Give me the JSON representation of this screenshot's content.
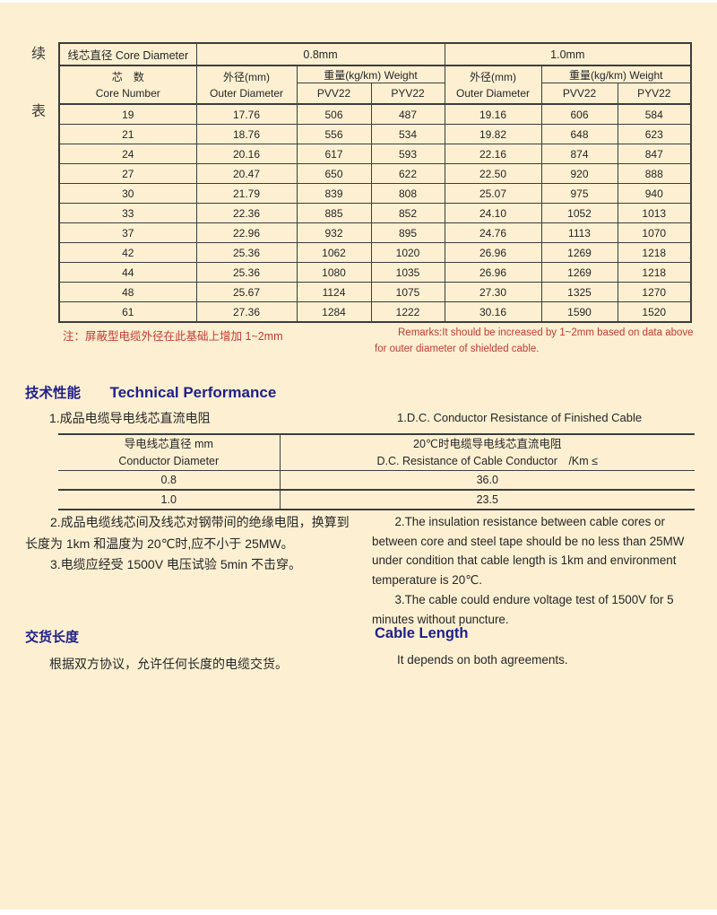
{
  "colors": {
    "background": "#fdf0d2",
    "accent_blue": "#1f1f8b",
    "note_red": "#c43b36",
    "table_border": "#3d3d3d"
  },
  "continued_label": {
    "char1": "续",
    "char2": "表"
  },
  "table1": {
    "header": {
      "core_diameter": "线芯直径 Core Diameter",
      "size_08": "0.8mm",
      "size_10": "1.0mm",
      "core_number_cn": "芯　数",
      "core_number_en": "Core Number",
      "outer_diameter_cn": "外径(mm)",
      "outer_diameter_en": "Outer Diameter",
      "weight": "重量(kg/km) Weight",
      "pvv22": "PVV22",
      "pyv22": "PYV22"
    },
    "rows": [
      [
        "19",
        "17.76",
        "506",
        "487",
        "19.16",
        "606",
        "584"
      ],
      [
        "21",
        "18.76",
        "556",
        "534",
        "19.82",
        "648",
        "623"
      ],
      [
        "24",
        "20.16",
        "617",
        "593",
        "22.16",
        "874",
        "847"
      ],
      [
        "27",
        "20.47",
        "650",
        "622",
        "22.50",
        "920",
        "888"
      ],
      [
        "30",
        "21.79",
        "839",
        "808",
        "25.07",
        "975",
        "940"
      ],
      [
        "33",
        "22.36",
        "885",
        "852",
        "24.10",
        "1052",
        "1013"
      ],
      [
        "37",
        "22.96",
        "932",
        "895",
        "24.76",
        "1113",
        "1070"
      ],
      [
        "42",
        "25.36",
        "1062",
        "1020",
        "26.96",
        "1269",
        "1218"
      ],
      [
        "44",
        "25.36",
        "1080",
        "1035",
        "26.96",
        "1269",
        "1218"
      ],
      [
        "48",
        "25.67",
        "1124",
        "1075",
        "27.30",
        "1325",
        "1270"
      ],
      [
        "61",
        "27.36",
        "1284",
        "1222",
        "30.16",
        "1590",
        "1520"
      ]
    ]
  },
  "notes": {
    "cn": "注：屏蔽型电缆外径在此基础上增加 1~2mm",
    "en": "Remarks:It should be increased by 1~2mm based on data above for outer diameter of shielded cable."
  },
  "technical": {
    "heading_cn": "技术性能",
    "heading_en": "Technical Performance",
    "item1_cn": "1.成品电缆导电线芯直流电阻",
    "item1_en": "1.D.C. Conductor Resistance of Finished Cable",
    "item2_cn": "2.成品电缆线芯间及线芯对钢带间的绝缘电阻，换算到长度为 1km 和温度为 20℃时,应不小于 25MW。",
    "item2_en": "2.The insulation resistance between cable cores or between core and steel tape should be no less than 25MW under condition that cable length is 1km and environment temperature is 20℃.",
    "item3_cn": "3.电缆应经受 1500V 电压试验 5min 不击穿。",
    "item3_en": "3.The cable could endure voltage test of 1500V for 5 minutes without puncture."
  },
  "table2": {
    "header": {
      "col1_cn": "导电线芯直径 mm",
      "col1_en": "Conductor Diameter",
      "col2_cn": "20℃时电缆导电线芯直流电阻",
      "col2_en": "D.C. Resistance of Cable Conductor　/Km ≤"
    },
    "rows": [
      [
        "0.8",
        "36.0"
      ],
      [
        "1.0",
        "23.5"
      ]
    ]
  },
  "delivery": {
    "heading_cn": "交货长度",
    "heading_en": "Cable Length",
    "text_cn": "根据双方协议，允许任何长度的电缆交货。",
    "text_en": "It depends on both agreements."
  }
}
